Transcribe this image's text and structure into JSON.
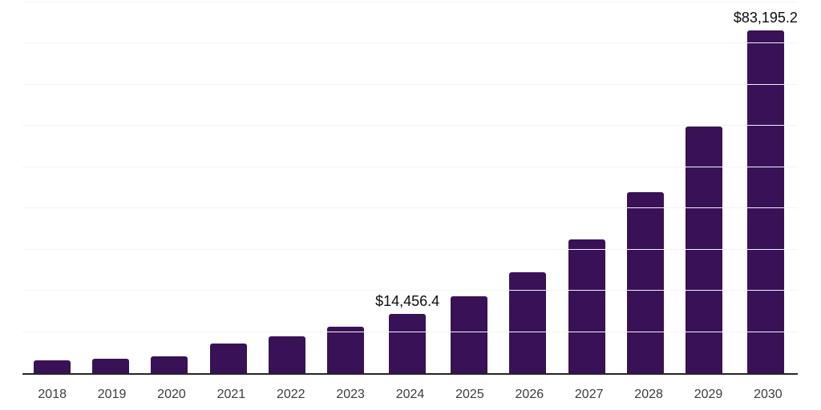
{
  "chart_data": {
    "type": "bar",
    "title": "",
    "xlabel": "",
    "ylabel": "",
    "categories": [
      "2018",
      "2019",
      "2020",
      "2021",
      "2022",
      "2023",
      "2024",
      "2025",
      "2026",
      "2027",
      "2028",
      "2029",
      "2030"
    ],
    "values": [
      3050,
      3500,
      4150,
      7100,
      8950,
      11300,
      14456.4,
      18600,
      24400,
      32500,
      43900,
      59800,
      83195.2
    ],
    "data_labels": [
      null,
      null,
      null,
      null,
      null,
      null,
      "$14,456.4",
      null,
      null,
      null,
      null,
      null,
      "$83,195.2"
    ],
    "ylim": [
      0,
      90500
    ],
    "grid_step": 10000,
    "grid": true,
    "legend": false,
    "colors": {
      "bar_fill": "#381157",
      "gridline": "#f4f2f5",
      "axis_line": "#262626",
      "tick_label": "#3c3c3c",
      "data_label": "#0d0d0d",
      "background": "#ffffff"
    }
  }
}
